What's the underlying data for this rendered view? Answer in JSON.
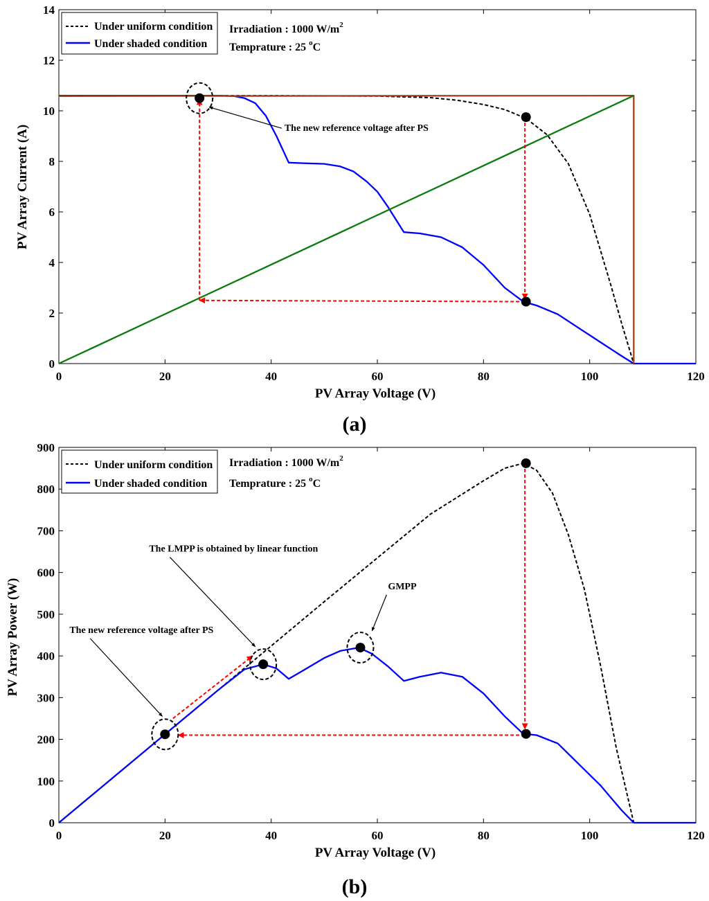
{
  "chart_data": [
    {
      "id": "a",
      "type": "line",
      "panel_label": "(a)",
      "panel_letter": "a",
      "xlabel": "PV Array Voltage (V)",
      "ylabel": "PV Array Current (A)",
      "xlim": [
        0,
        120
      ],
      "ylim": [
        0,
        14
      ],
      "xticks": [
        0,
        20,
        40,
        60,
        80,
        100,
        120
      ],
      "yticks": [
        0,
        2,
        4,
        6,
        8,
        10,
        12,
        14
      ],
      "legend": {
        "placement": "top-left",
        "items": [
          {
            "label": "Under uniform condition",
            "color": "#000000",
            "dash": true
          },
          {
            "label": "Under shaded condition",
            "color": "#0000ff",
            "dash": false
          }
        ]
      },
      "info": {
        "irradiation_prefix": "Irradiation : 1000 W/m",
        "irradiation_sup": "2",
        "temp_prefix": "Temprature : 25 ",
        "temp_sup": "o",
        "temp_unit": "C"
      },
      "series": [
        {
          "name": "Under uniform condition",
          "color": "#000000",
          "dash": true,
          "x": [
            0,
            20,
            40,
            60,
            70,
            75,
            80,
            84,
            88,
            92,
            96,
            100,
            104,
            106,
            108.3
          ],
          "y": [
            10.6,
            10.6,
            10.6,
            10.58,
            10.52,
            10.42,
            10.25,
            10.05,
            9.7,
            9.05,
            7.9,
            5.9,
            3.1,
            1.6,
            0
          ]
        },
        {
          "name": "Under shaded condition",
          "color": "#0000ff",
          "dash": false,
          "x": [
            0,
            25,
            30,
            33,
            35,
            37,
            39,
            41,
            43.3,
            46,
            50,
            53,
            55.5,
            58,
            60,
            62,
            65,
            68,
            72,
            76,
            80,
            84,
            87.5,
            90,
            94,
            98,
            102,
            106,
            108.3,
            110,
            120
          ],
          "y": [
            10.6,
            10.6,
            10.6,
            10.58,
            10.5,
            10.3,
            9.8,
            9.0,
            7.95,
            7.93,
            7.9,
            7.8,
            7.6,
            7.2,
            6.8,
            6.2,
            5.2,
            5.15,
            5.0,
            4.6,
            3.9,
            3.0,
            2.45,
            2.3,
            1.95,
            1.4,
            0.85,
            0.3,
            0,
            0,
            0
          ]
        },
        {
          "name": "Rectangle current boundary",
          "color": "#a0421a",
          "dash": false,
          "x": [
            0,
            108.3,
            108.3
          ],
          "y": [
            10.58,
            10.6,
            0
          ]
        },
        {
          "name": "Linear function",
          "color": "#0a7a0a",
          "dash": false,
          "x": [
            0,
            108.3
          ],
          "y": [
            0,
            10.6
          ]
        },
        {
          "name": "Reference arrow path",
          "color": "#ff0000",
          "dash": true,
          "x": [
            87.8,
            87.8
          ],
          "y": [
            9.75,
            2.45
          ]
        }
      ],
      "arrows": [
        {
          "from": [
            87.8,
            9.75
          ],
          "to": [
            87.8,
            2.55
          ]
        },
        {
          "from": [
            87.8,
            2.45
          ],
          "to": [
            26.5,
            2.5
          ]
        },
        {
          "from": [
            26.5,
            2.5
          ],
          "to": [
            26.5,
            10.45
          ]
        }
      ],
      "markers": [
        {
          "x": 26.5,
          "y": 10.5,
          "circled": true
        },
        {
          "x": 88.0,
          "y": 9.75,
          "circled": false
        },
        {
          "x": 88.0,
          "y": 2.45,
          "circled": false
        }
      ],
      "annotations": [
        {
          "text": "The new reference voltage after PS",
          "tx": 42.5,
          "ty": 9.2,
          "ax": 28.3,
          "ay": 10.15
        }
      ]
    },
    {
      "id": "b",
      "type": "line",
      "panel_label": "(b)",
      "panel_letter": "b",
      "xlabel": "PV Array Voltage (V)",
      "ylabel": "PV Array Power (W)",
      "xlim": [
        0,
        120
      ],
      "ylim": [
        0,
        900
      ],
      "xticks": [
        0,
        20,
        40,
        60,
        80,
        100,
        120
      ],
      "yticks": [
        0,
        100,
        200,
        300,
        400,
        500,
        600,
        700,
        800,
        900
      ],
      "legend": {
        "placement": "top-left",
        "items": [
          {
            "label": "Under uniform condition",
            "color": "#000000",
            "dash": true
          },
          {
            "label": "Under shaded condition",
            "color": "#0000ff",
            "dash": false
          }
        ]
      },
      "info": {
        "irradiation_prefix": "Irradiation : 1000 W/m",
        "irradiation_sup": "2",
        "temp_prefix": "Temprature : 25 ",
        "temp_sup": "o",
        "temp_unit": "C"
      },
      "series": [
        {
          "name": "Under uniform condition",
          "color": "#000000",
          "dash": true,
          "x": [
            0,
            20,
            30,
            40,
            50,
            60,
            70,
            80,
            84,
            87.5,
            90,
            93,
            96,
            99,
            102,
            105,
            108.3
          ],
          "y": [
            0,
            212,
            318,
            424,
            530,
            635,
            740,
            820,
            850,
            862,
            845,
            790,
            690,
            560,
            380,
            180,
            0
          ]
        },
        {
          "name": "Under shaded condition",
          "color": "#0000ff",
          "dash": false,
          "x": [
            0,
            20,
            30,
            35,
            38.5,
            41,
            43.3,
            46,
            50,
            53,
            56.5,
            59,
            62,
            65,
            68,
            72,
            76,
            80,
            84,
            87.5,
            90,
            94,
            98,
            102,
            106,
            108.3,
            110,
            120
          ],
          "y": [
            0,
            212,
            318,
            368,
            380,
            370,
            345,
            365,
            395,
            412,
            420,
            405,
            375,
            340,
            350,
            360,
            350,
            310,
            255,
            213,
            210,
            190,
            140,
            90,
            30,
            0,
            0,
            0
          ]
        }
      ],
      "arrows": [
        {
          "from": [
            87.8,
            862
          ],
          "to": [
            87.8,
            225
          ]
        },
        {
          "from": [
            87.8,
            210
          ],
          "to": [
            22.5,
            210
          ]
        },
        {
          "from": [
            21.5,
            250
          ],
          "to": [
            36.5,
            400
          ]
        }
      ],
      "markers": [
        {
          "x": 20,
          "y": 212,
          "circled": true
        },
        {
          "x": 38.5,
          "y": 380,
          "circled": true
        },
        {
          "x": 56.8,
          "y": 420,
          "circled": true
        },
        {
          "x": 88,
          "y": 862,
          "circled": false
        },
        {
          "x": 88,
          "y": 213,
          "circled": false
        }
      ],
      "annotations": [
        {
          "text": "The LMPP is obtained by linear function",
          "tx": 17,
          "ty": 650,
          "ax": 37,
          "ay": 422
        },
        {
          "text": "GMPP",
          "tx": 62,
          "ty": 560,
          "ax": 59,
          "ay": 460
        },
        {
          "text": "The new reference voltage after PS",
          "tx": 2,
          "ty": 455,
          "ax": 19.5,
          "ay": 255
        }
      ]
    }
  ]
}
